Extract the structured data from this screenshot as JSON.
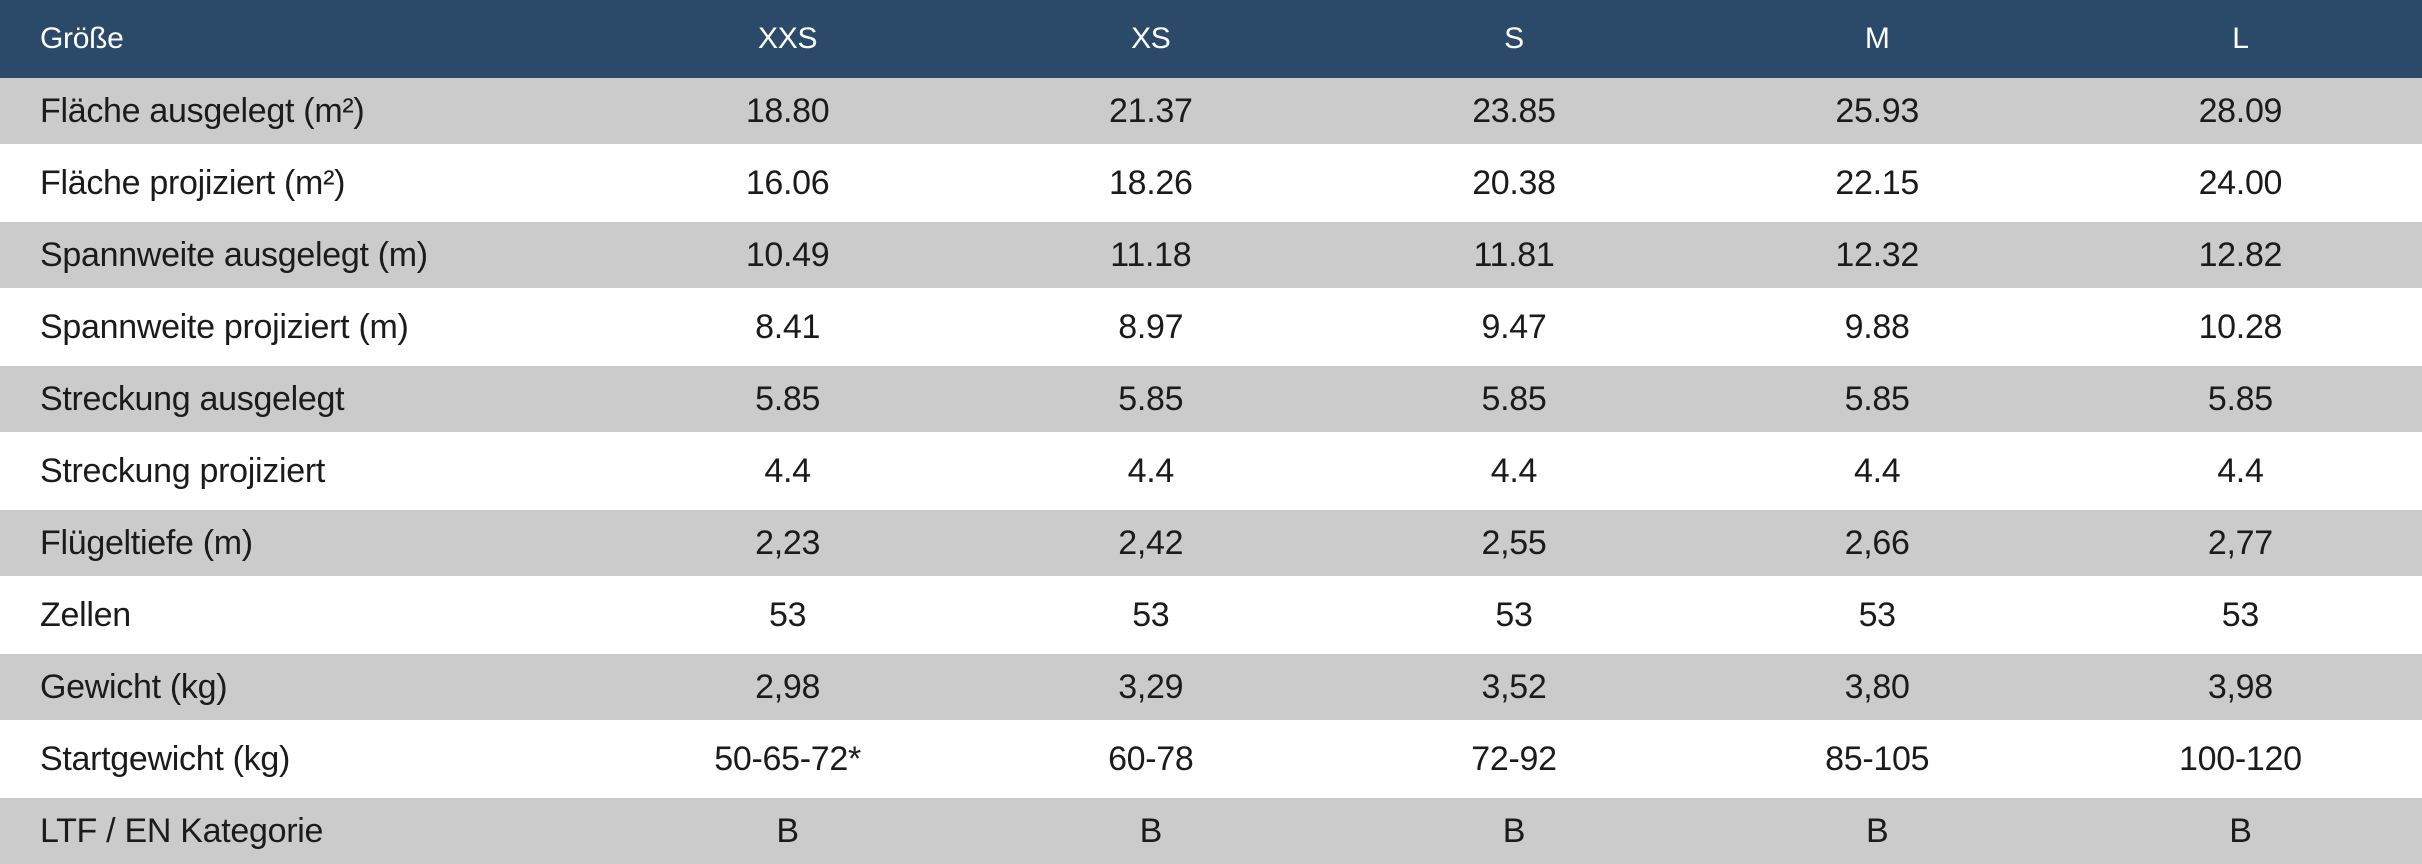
{
  "chart_data": {
    "type": "table",
    "header": {
      "row_label_column": "Größe",
      "size_columns": [
        "XXS",
        "XS",
        "S",
        "M",
        "L"
      ]
    },
    "rows": [
      {
        "label": "Fläche ausgelegt (m²)",
        "values": [
          "18.80",
          "21.37",
          "23.85",
          "25.93",
          "28.09"
        ]
      },
      {
        "label": "Fläche projiziert (m²)",
        "values": [
          "16.06",
          "18.26",
          "20.38",
          "22.15",
          "24.00"
        ]
      },
      {
        "label": "Spannweite ausgelegt (m)",
        "values": [
          "10.49",
          "11.18",
          "11.81",
          "12.32",
          "12.82"
        ]
      },
      {
        "label": "Spannweite projiziert (m)",
        "values": [
          "8.41",
          "8.97",
          "9.47",
          "9.88",
          "10.28"
        ]
      },
      {
        "label": "Streckung ausgelegt",
        "values": [
          "5.85",
          "5.85",
          "5.85",
          "5.85",
          "5.85"
        ]
      },
      {
        "label": "Streckung projiziert",
        "values": [
          "4.4",
          "4.4",
          "4.4",
          "4.4",
          "4.4"
        ]
      },
      {
        "label": "Flügeltiefe (m)",
        "values": [
          "2,23",
          "2,42",
          "2,55",
          "2,66",
          "2,77"
        ]
      },
      {
        "label": "Zellen",
        "values": [
          "53",
          "53",
          "53",
          "53",
          "53"
        ]
      },
      {
        "label": "Gewicht (kg)",
        "values": [
          "2,98",
          "3,29",
          "3,52",
          "3,80",
          "3,98"
        ]
      },
      {
        "label": "Startgewicht (kg)",
        "values": [
          "50-65-72*",
          "60-78",
          "72-92",
          "85-105",
          "100-120"
        ]
      },
      {
        "label": "LTF / EN Kategorie",
        "values": [
          "B",
          "B",
          "B",
          "B",
          "B"
        ]
      }
    ]
  },
  "colors": {
    "header_bg": "#2b4a6a",
    "header_text": "#ffffff",
    "row_stripe": "#cbcbcb",
    "text": "#1b1b1b"
  }
}
